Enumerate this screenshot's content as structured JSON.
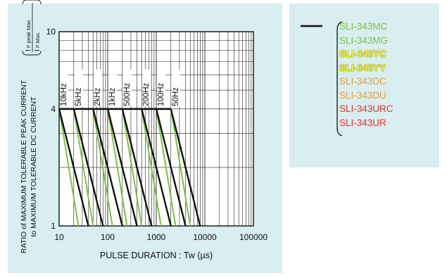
{
  "chart_data": {
    "type": "line",
    "xlabel": "PULSE  DURATION : Tw  (µs)",
    "ylabel_main": "RATIO of MAXIMUM TOLERABLE PEAK CURRENT",
    "ylabel_sub": "to MAXIMUM TOLERABLE DC CURRENT",
    "ylabel_formula": {
      "numerator": "I",
      "numerator_sub": "F peak Max.",
      "denominator": "I",
      "denominator_sub": "F Max."
    },
    "x_scale": "log",
    "y_scale": "log",
    "xlim": [
      10,
      100000
    ],
    "ylim": [
      1,
      10
    ],
    "x_ticks": [
      "10",
      "100",
      "1000",
      "10000",
      "100000"
    ],
    "y_ticks": [
      "1",
      "4",
      "10"
    ],
    "grid": true,
    "series": [
      {
        "name": "10kHz",
        "black": [
          [
            10,
            4
          ],
          [
            40,
            1
          ]
        ],
        "green": [
          [
            10,
            4
          ],
          [
            25,
            1
          ]
        ]
      },
      {
        "name": "5kHz",
        "black": [
          [
            20,
            4
          ],
          [
            80,
            1
          ]
        ],
        "green": [
          [
            20,
            4
          ],
          [
            50,
            1
          ]
        ]
      },
      {
        "name": "2kHz",
        "black": [
          [
            50,
            4
          ],
          [
            200,
            1
          ]
        ],
        "green": [
          [
            50,
            4
          ],
          [
            125,
            1
          ]
        ]
      },
      {
        "name": "1kHz",
        "black": [
          [
            100,
            4
          ],
          [
            400,
            1
          ]
        ],
        "green": [
          [
            100,
            4
          ],
          [
            250,
            1
          ]
        ]
      },
      {
        "name": "500Hz",
        "black": [
          [
            200,
            4
          ],
          [
            800,
            1
          ]
        ],
        "green": [
          [
            200,
            4
          ],
          [
            500,
            1
          ]
        ]
      },
      {
        "name": "200Hz",
        "black": [
          [
            500,
            4
          ],
          [
            2000,
            1
          ]
        ],
        "green": [
          [
            500,
            4
          ],
          [
            1250,
            1
          ]
        ]
      },
      {
        "name": "100Hz",
        "black": [
          [
            1000,
            4
          ],
          [
            4000,
            1
          ]
        ],
        "green": [
          [
            1000,
            4
          ],
          [
            2500,
            1
          ]
        ]
      },
      {
        "name": "50Hz",
        "black": [
          [
            2000,
            4
          ],
          [
            8000,
            1
          ]
        ],
        "green": [
          [
            2000,
            4
          ],
          [
            5000,
            1
          ]
        ]
      }
    ],
    "top_line": {
      "y": 4,
      "x": [
        10,
        2000
      ]
    }
  },
  "legend": {
    "items": [
      {
        "label": "SLI-343MC",
        "color": "#7cc242",
        "bold": false
      },
      {
        "label": "SLI-343MG",
        "color": "#7cc242",
        "bold": false
      },
      {
        "label": "SLI-343YC",
        "color": "#ffff00",
        "bold": true
      },
      {
        "label": "SLI-343YY",
        "color": "#ffff00",
        "bold": true
      },
      {
        "label": "SLI-343DC",
        "color": "#f39a2e",
        "bold": false
      },
      {
        "label": "SLI-343DU",
        "color": "#f39a2e",
        "bold": false
      },
      {
        "label": "SLI-343URC",
        "color": "#e8312f",
        "bold": false
      },
      {
        "label": "SLI-343UR",
        "color": "#e8312f",
        "bold": false
      }
    ]
  },
  "colors": {
    "black_line": "#111111",
    "green_line": "#7cc242",
    "panel_bg": "#d8eef0"
  }
}
